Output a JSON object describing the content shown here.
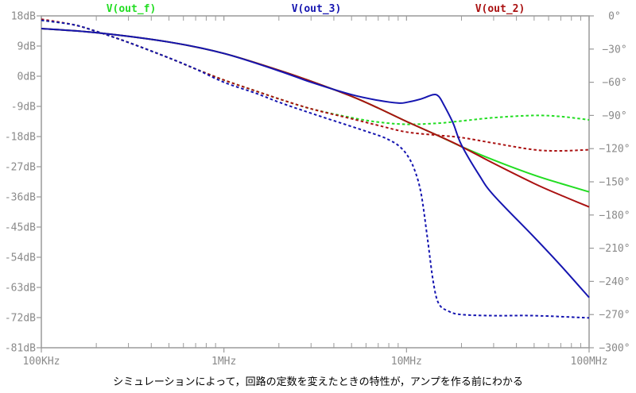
{
  "caption": "シミュレーションによって，回路の定数を変えたときの特性が，アンプを作る前にわかる",
  "chart_data": {
    "type": "line",
    "x_scale": "log",
    "x_unit": "Hz",
    "xlim": [
      100000,
      100000000
    ],
    "x_tick_labels": [
      "100KHz",
      "1MHz",
      "10MHz",
      "100MHz"
    ],
    "x_tick_values": [
      100000,
      1000000,
      10000000,
      100000000
    ],
    "y_left_ticks": [
      18,
      9,
      0,
      -9,
      -18,
      -27,
      -36,
      -45,
      -54,
      -63,
      -72,
      -81
    ],
    "y_left_labels": [
      "18dB",
      "9dB",
      "0dB",
      "-9dB",
      "-18dB",
      "-27dB",
      "-36dB",
      "-45dB",
      "-54dB",
      "-63dB",
      "-72dB",
      "-81dB"
    ],
    "ylim_left": [
      -81,
      18
    ],
    "y_right_ticks": [
      0,
      -30,
      -60,
      -90,
      -120,
      -150,
      -180,
      -210,
      -240,
      -270,
      -300
    ],
    "y_right_labels": [
      "0°",
      "−30°",
      "−60°",
      "−90°",
      "−120°",
      "−150°",
      "−180°",
      "−210°",
      "−240°",
      "−270°",
      "−300°"
    ],
    "ylim_right": [
      -300,
      0
    ],
    "grid": false,
    "legend_position": "top",
    "colors": {
      "frame": "#9a9a9a",
      "tick_text": "#8a8a8a"
    },
    "series": [
      {
        "name": "V(out_f)",
        "color": "#22dd22",
        "magnitude": [
          [
            100000,
            14.2
          ],
          [
            200000,
            13.0
          ],
          [
            500000,
            10.2
          ],
          [
            1000000,
            6.8
          ],
          [
            2000000,
            1.8
          ],
          [
            3000000,
            -1.5
          ],
          [
            5000000,
            -6.0
          ],
          [
            7000000,
            -9.5
          ],
          [
            10000000,
            -13.5
          ],
          [
            15000000,
            -17.8
          ],
          [
            20000000,
            -21.0
          ],
          [
            30000000,
            -25.0
          ],
          [
            50000000,
            -29.5
          ],
          [
            70000000,
            -32.0
          ],
          [
            100000000,
            -34.5
          ]
        ],
        "phase": [
          [
            100000,
            -4
          ],
          [
            150000,
            -8
          ],
          [
            200000,
            -14
          ],
          [
            300000,
            -24
          ],
          [
            500000,
            -38
          ],
          [
            700000,
            -48
          ],
          [
            1000000,
            -58
          ],
          [
            1500000,
            -68
          ],
          [
            2000000,
            -75
          ],
          [
            3000000,
            -84
          ],
          [
            5000000,
            -92
          ],
          [
            7000000,
            -96
          ],
          [
            10000000,
            -98
          ],
          [
            15000000,
            -97
          ],
          [
            20000000,
            -95
          ],
          [
            30000000,
            -92
          ],
          [
            50000000,
            -90
          ],
          [
            70000000,
            -91
          ],
          [
            100000000,
            -94
          ]
        ]
      },
      {
        "name": "V(out_3)",
        "color": "#1515b0",
        "magnitude": [
          [
            100000,
            14.2
          ],
          [
            200000,
            13.0
          ],
          [
            500000,
            10.2
          ],
          [
            1000000,
            6.8
          ],
          [
            2000000,
            1.6
          ],
          [
            3000000,
            -1.8
          ],
          [
            5000000,
            -5.5
          ],
          [
            7000000,
            -7.2
          ],
          [
            9000000,
            -8.0
          ],
          [
            10000000,
            -7.8
          ],
          [
            12000000,
            -6.8
          ],
          [
            14000000,
            -5.5
          ],
          [
            15000000,
            -6.0
          ],
          [
            16000000,
            -8.5
          ],
          [
            18000000,
            -14.0
          ],
          [
            20000000,
            -20.5
          ],
          [
            25000000,
            -29.5
          ],
          [
            30000000,
            -35.5
          ],
          [
            50000000,
            -48.0
          ],
          [
            70000000,
            -56.5
          ],
          [
            100000000,
            -66.0
          ]
        ],
        "phase": [
          [
            100000,
            -4
          ],
          [
            150000,
            -8
          ],
          [
            200000,
            -14
          ],
          [
            300000,
            -24
          ],
          [
            500000,
            -38
          ],
          [
            700000,
            -48
          ],
          [
            1000000,
            -60
          ],
          [
            1500000,
            -70
          ],
          [
            2000000,
            -78
          ],
          [
            3000000,
            -88
          ],
          [
            5000000,
            -100
          ],
          [
            7000000,
            -108
          ],
          [
            8000000,
            -112
          ],
          [
            9000000,
            -117
          ],
          [
            10000000,
            -125
          ],
          [
            11000000,
            -138
          ],
          [
            12000000,
            -160
          ],
          [
            13000000,
            -200
          ],
          [
            14000000,
            -240
          ],
          [
            15000000,
            -260
          ],
          [
            17000000,
            -267
          ],
          [
            20000000,
            -270
          ],
          [
            30000000,
            -271
          ],
          [
            50000000,
            -271
          ],
          [
            100000000,
            -273
          ]
        ]
      },
      {
        "name": "V(out_2)",
        "color": "#aa1111",
        "magnitude": [
          [
            100000,
            14.2
          ],
          [
            200000,
            13.0
          ],
          [
            500000,
            10.2
          ],
          [
            1000000,
            6.8
          ],
          [
            2000000,
            1.8
          ],
          [
            3000000,
            -1.5
          ],
          [
            5000000,
            -6.0
          ],
          [
            7000000,
            -9.5
          ],
          [
            10000000,
            -13.5
          ],
          [
            15000000,
            -17.8
          ],
          [
            20000000,
            -21.0
          ],
          [
            30000000,
            -26.0
          ],
          [
            50000000,
            -32.0
          ],
          [
            70000000,
            -35.5
          ],
          [
            100000000,
            -39.0
          ]
        ],
        "phase": [
          [
            100000,
            -3
          ],
          [
            150000,
            -8
          ],
          [
            200000,
            -14
          ],
          [
            300000,
            -24
          ],
          [
            500000,
            -38
          ],
          [
            700000,
            -48
          ],
          [
            1000000,
            -58
          ],
          [
            1500000,
            -68
          ],
          [
            2000000,
            -75
          ],
          [
            3000000,
            -84
          ],
          [
            5000000,
            -93
          ],
          [
            7000000,
            -99
          ],
          [
            10000000,
            -105
          ],
          [
            15000000,
            -108
          ],
          [
            20000000,
            -110
          ],
          [
            30000000,
            -115
          ],
          [
            50000000,
            -121
          ],
          [
            70000000,
            -122
          ],
          [
            100000000,
            -121
          ]
        ]
      }
    ]
  }
}
